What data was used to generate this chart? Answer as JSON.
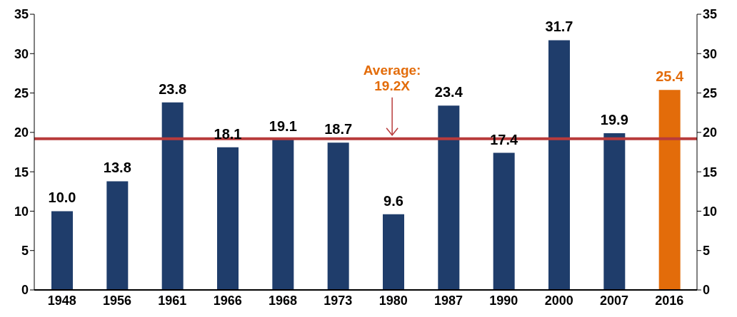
{
  "chart_data": {
    "type": "bar",
    "categories": [
      "1948",
      "1956",
      "1961",
      "1966",
      "1968",
      "1973",
      "1980",
      "1987",
      "1990",
      "2000",
      "2007",
      "2016"
    ],
    "values": [
      10.0,
      13.8,
      23.8,
      18.1,
      19.1,
      18.7,
      9.6,
      23.4,
      17.4,
      31.7,
      19.9,
      25.4
    ],
    "colors": [
      "#1f3d6b",
      "#1f3d6b",
      "#1f3d6b",
      "#1f3d6b",
      "#1f3d6b",
      "#1f3d6b",
      "#1f3d6b",
      "#1f3d6b",
      "#1f3d6b",
      "#1f3d6b",
      "#1f3d6b",
      "#e36c0a"
    ],
    "value_labels": [
      "10.0",
      "13.8",
      "23.8",
      "18.1",
      "19.1",
      "18.7",
      "9.6",
      "23.4",
      "17.4",
      "31.7",
      "19.9",
      "25.4"
    ],
    "ylim": [
      0,
      35
    ],
    "yticks": [
      0,
      5,
      10,
      15,
      20,
      25,
      30,
      35
    ],
    "y2lim": [
      0,
      35
    ],
    "y2ticks": [
      0,
      5,
      10,
      15,
      20,
      25,
      30,
      35
    ],
    "ref_lines": [
      {
        "axis": "y",
        "value": 19.2,
        "label": "Average: 19.2X",
        "color": "#b83b3b"
      }
    ]
  }
}
